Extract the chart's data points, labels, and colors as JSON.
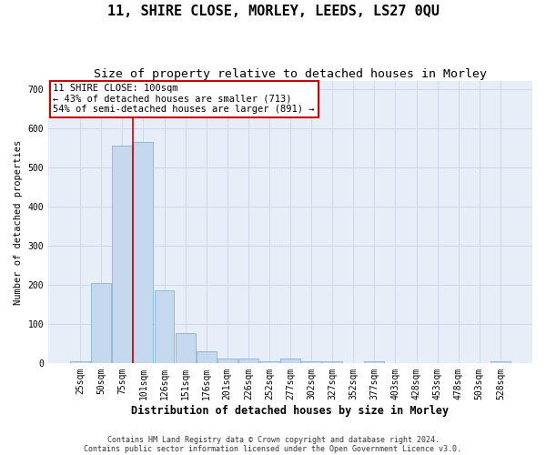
{
  "title": "11, SHIRE CLOSE, MORLEY, LEEDS, LS27 0QU",
  "subtitle": "Size of property relative to detached houses in Morley",
  "xlabel": "Distribution of detached houses by size in Morley",
  "ylabel": "Number of detached properties",
  "categories": [
    "25sqm",
    "50sqm",
    "75sqm",
    "101sqm",
    "126sqm",
    "151sqm",
    "176sqm",
    "201sqm",
    "226sqm",
    "252sqm",
    "277sqm",
    "302sqm",
    "327sqm",
    "352sqm",
    "377sqm",
    "403sqm",
    "428sqm",
    "453sqm",
    "478sqm",
    "503sqm",
    "528sqm"
  ],
  "values": [
    5,
    205,
    555,
    565,
    185,
    75,
    30,
    10,
    10,
    5,
    10,
    5,
    5,
    0,
    5,
    0,
    0,
    0,
    0,
    0,
    5
  ],
  "bar_color": "#c5d8ee",
  "bar_edge_color": "#7aaad0",
  "vline_x_idx": 2.5,
  "annotation_text": "11 SHIRE CLOSE: 100sqm\n← 43% of detached houses are smaller (713)\n54% of semi-detached houses are larger (891) →",
  "annotation_box_color": "#ffffff",
  "annotation_border_color": "#cc0000",
  "grid_color": "#cdd8ea",
  "bg_color": "#e8eef8",
  "vline_color": "#cc0000",
  "ylim": [
    0,
    720
  ],
  "yticks": [
    0,
    100,
    200,
    300,
    400,
    500,
    600,
    700
  ],
  "footnote1": "Contains HM Land Registry data © Crown copyright and database right 2024.",
  "footnote2": "Contains public sector information licensed under the Open Government Licence v3.0.",
  "title_fontsize": 11,
  "subtitle_fontsize": 9.5,
  "xlabel_fontsize": 8.5,
  "ylabel_fontsize": 7.5,
  "tick_fontsize": 7,
  "annotation_fontsize": 7.5,
  "footnote_fontsize": 6
}
